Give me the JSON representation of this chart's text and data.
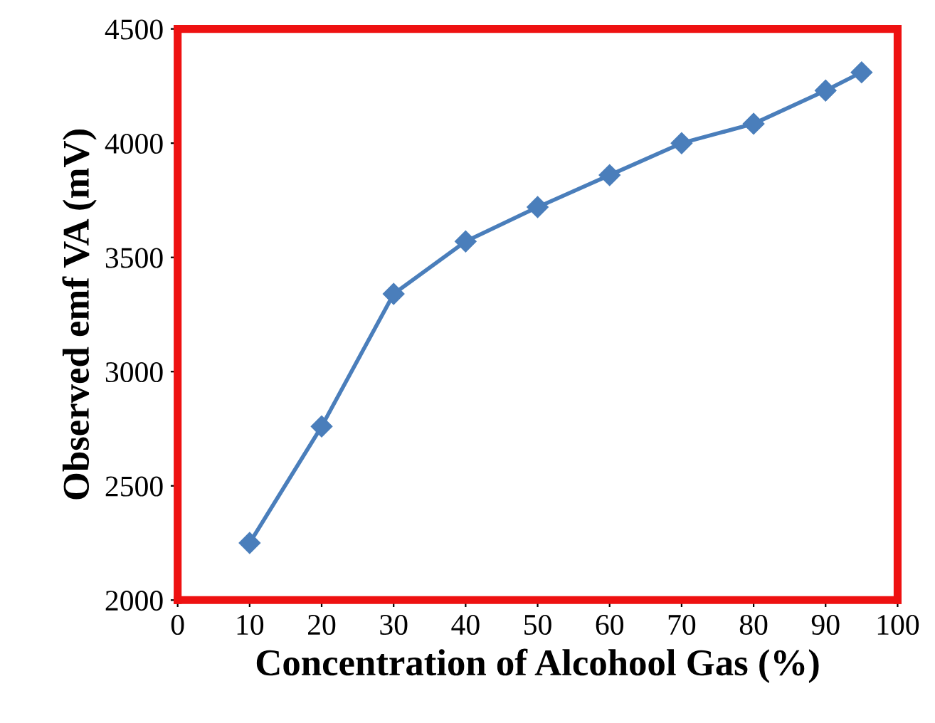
{
  "chart_data": {
    "type": "line",
    "xlabel": "Concentration of Alcohool Gas (%)",
    "ylabel": "Observed emf VA (mV)",
    "x": [
      10,
      20,
      30,
      40,
      50,
      60,
      70,
      80,
      90,
      95
    ],
    "series": [
      {
        "color": "#4a7ebb",
        "values": [
          2250,
          2760,
          3340,
          3570,
          3720,
          3860,
          4000,
          4085,
          4230,
          4310
        ]
      }
    ],
    "xlim": [
      0,
      100
    ],
    "xticks": [
      0,
      10,
      20,
      30,
      40,
      50,
      60,
      70,
      80,
      90,
      100
    ],
    "ylim": [
      2000,
      4500
    ],
    "yticks": [
      2000,
      2500,
      3000,
      3500,
      4000,
      4500
    ],
    "marker": "diamond",
    "line_style": "solid",
    "grid": false,
    "legend": false
  }
}
